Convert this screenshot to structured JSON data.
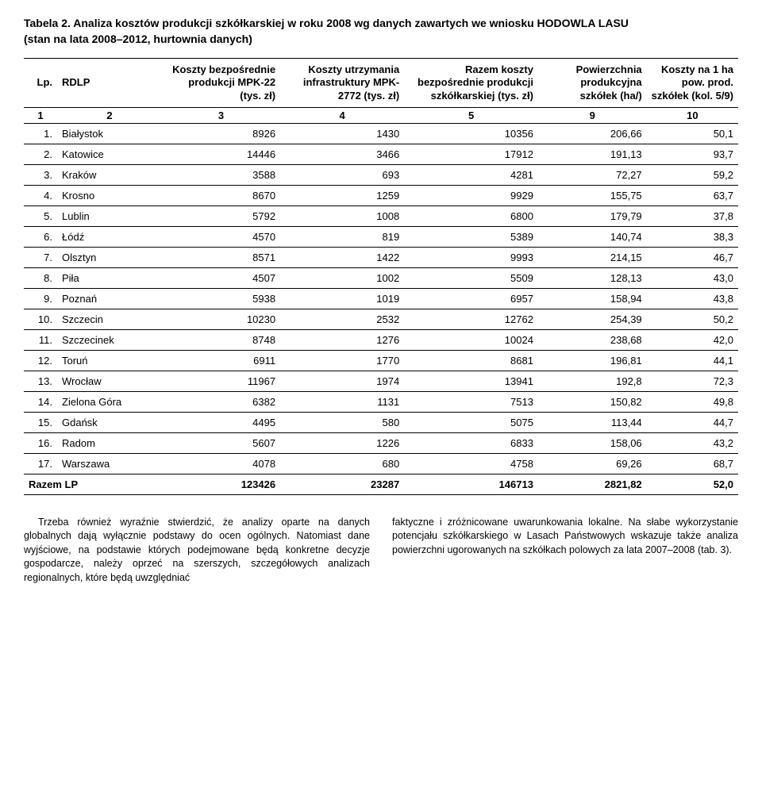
{
  "title_line1": "Tabela 2. Analiza kosztów produkcji szkółkarskiej w roku 2008 wg danych zawartych we wniosku HODOWLA LASU",
  "title_line2": "(stan na lata 2008–2012, hurtownia danych)",
  "headers": {
    "lp": "Lp.",
    "rdlp": "RDLP",
    "c3": "Koszty bezpośrednie produkcji MPK-22 (tys. zł)",
    "c4": "Koszty utrzymania infrastruktury MPK-2772 (tys. zł)",
    "c5": "Razem koszty bezpośrednie produkcji szkółkarskiej (tys. zł)",
    "c9": "Powierzchnia produkcyjna szkółek (ha/)",
    "c10": "Koszty na 1 ha pow. prod. szkółek (kol. 5/9)"
  },
  "subhead": [
    "1",
    "2",
    "3",
    "4",
    "5",
    "9",
    "10"
  ],
  "rows": [
    {
      "lp": "1.",
      "name": "Białystok",
      "c3": "8926",
      "c4": "1430",
      "c5": "10356",
      "c9": "206,66",
      "c10": "50,1"
    },
    {
      "lp": "2.",
      "name": "Katowice",
      "c3": "14446",
      "c4": "3466",
      "c5": "17912",
      "c9": "191,13",
      "c10": "93,7"
    },
    {
      "lp": "3.",
      "name": "Kraków",
      "c3": "3588",
      "c4": "693",
      "c5": "4281",
      "c9": "72,27",
      "c10": "59,2"
    },
    {
      "lp": "4.",
      "name": "Krosno",
      "c3": "8670",
      "c4": "1259",
      "c5": "9929",
      "c9": "155,75",
      "c10": "63,7"
    },
    {
      "lp": "5.",
      "name": "Lublin",
      "c3": "5792",
      "c4": "1008",
      "c5": "6800",
      "c9": "179,79",
      "c10": "37,8"
    },
    {
      "lp": "6.",
      "name": "Łódź",
      "c3": "4570",
      "c4": "819",
      "c5": "5389",
      "c9": "140,74",
      "c10": "38,3"
    },
    {
      "lp": "7.",
      "name": "Olsztyn",
      "c3": "8571",
      "c4": "1422",
      "c5": "9993",
      "c9": "214,15",
      "c10": "46,7"
    },
    {
      "lp": "8.",
      "name": "Piła",
      "c3": "4507",
      "c4": "1002",
      "c5": "5509",
      "c9": "128,13",
      "c10": "43,0"
    },
    {
      "lp": "9.",
      "name": "Poznań",
      "c3": "5938",
      "c4": "1019",
      "c5": "6957",
      "c9": "158,94",
      "c10": "43,8"
    },
    {
      "lp": "10.",
      "name": "Szczecin",
      "c3": "10230",
      "c4": "2532",
      "c5": "12762",
      "c9": "254,39",
      "c10": "50,2"
    },
    {
      "lp": "11.",
      "name": "Szczecinek",
      "c3": "8748",
      "c4": "1276",
      "c5": "10024",
      "c9": "238,68",
      "c10": "42,0"
    },
    {
      "lp": "12.",
      "name": "Toruń",
      "c3": "6911",
      "c4": "1770",
      "c5": "8681",
      "c9": "196,81",
      "c10": "44,1"
    },
    {
      "lp": "13.",
      "name": "Wrocław",
      "c3": "11967",
      "c4": "1974",
      "c5": "13941",
      "c9": "192,8",
      "c10": "72,3"
    },
    {
      "lp": "14.",
      "name": "Zielona Góra",
      "c3": "6382",
      "c4": "1131",
      "c5": "7513",
      "c9": "150,82",
      "c10": "49,8"
    },
    {
      "lp": "15.",
      "name": "Gdańsk",
      "c3": "4495",
      "c4": "580",
      "c5": "5075",
      "c9": "113,44",
      "c10": "44,7"
    },
    {
      "lp": "16.",
      "name": "Radom",
      "c3": "5607",
      "c4": "1226",
      "c5": "6833",
      "c9": "158,06",
      "c10": "43,2"
    },
    {
      "lp": "17.",
      "name": "Warszawa",
      "c3": "4078",
      "c4": "680",
      "c5": "4758",
      "c9": "69,26",
      "c10": "68,7"
    }
  ],
  "footer": {
    "label": "Razem LP",
    "c3": "123426",
    "c4": "23287",
    "c5": "146713",
    "c9": "2821,82",
    "c10": "52,0"
  },
  "para_left": "Trzeba również wyraźnie stwierdzić, że analizy oparte na danych globalnych dają wyłącznie podstawy do ocen ogólnych. Natomiast dane wyjściowe, na podstawie których podejmowane będą konkretne decyzje gospodarcze, należy oprzeć na szerszych, szczegółowych analizach regionalnych, które będą uwzględniać",
  "para_right": "faktyczne i zróżnicowane uwarunkowania lokalne. Na słabe wykorzystanie potencjału szkółkarskiego w Lasach Państwowych wskazuje także analiza powierzchni ugorowanych na szkółkach polowych za lata 2007–2008 (tab. 3)."
}
